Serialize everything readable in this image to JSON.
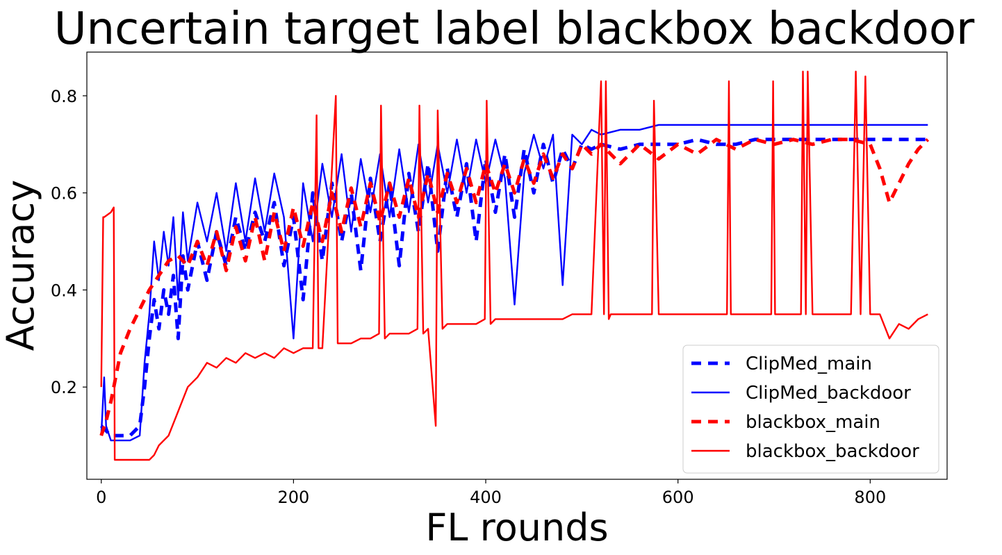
{
  "chart_data": {
    "type": "line",
    "title": "Uncertain target label blackbox backdoor",
    "xlabel": "FL rounds",
    "ylabel": "Accuracy",
    "xlim": [
      -15,
      880
    ],
    "ylim": [
      0.01,
      0.89
    ],
    "xticks": [
      0,
      200,
      400,
      600,
      800
    ],
    "yticks": [
      0.2,
      0.4,
      0.6,
      0.8
    ],
    "xtick_labels": [
      "0",
      "200",
      "400",
      "600",
      "800"
    ],
    "ytick_labels": [
      "0.2",
      "0.4",
      "0.6",
      "0.8"
    ],
    "grid": false,
    "legend_position": "lower-right",
    "series": [
      {
        "name": "ClipMed_main",
        "color": "#0000ff",
        "style": "dashed",
        "x": [
          0,
          5,
          10,
          20,
          30,
          40,
          45,
          50,
          55,
          60,
          65,
          70,
          75,
          80,
          85,
          90,
          100,
          110,
          120,
          130,
          140,
          150,
          160,
          170,
          180,
          190,
          200,
          210,
          220,
          230,
          240,
          250,
          260,
          270,
          280,
          290,
          300,
          310,
          320,
          330,
          340,
          350,
          360,
          370,
          380,
          390,
          400,
          410,
          420,
          430,
          440,
          450,
          460,
          470,
          480,
          490,
          500,
          510,
          520,
          540,
          560,
          580,
          600,
          620,
          640,
          660,
          680,
          700,
          720,
          740,
          760,
          780,
          800,
          820,
          840,
          860
        ],
        "y": [
          0.12,
          0.11,
          0.1,
          0.1,
          0.1,
          0.12,
          0.2,
          0.3,
          0.38,
          0.32,
          0.4,
          0.35,
          0.43,
          0.3,
          0.47,
          0.4,
          0.5,
          0.42,
          0.52,
          0.45,
          0.55,
          0.48,
          0.56,
          0.5,
          0.58,
          0.45,
          0.55,
          0.38,
          0.6,
          0.46,
          0.62,
          0.5,
          0.6,
          0.44,
          0.63,
          0.5,
          0.62,
          0.45,
          0.64,
          0.52,
          0.66,
          0.48,
          0.65,
          0.55,
          0.66,
          0.5,
          0.67,
          0.56,
          0.68,
          0.55,
          0.69,
          0.6,
          0.7,
          0.62,
          0.69,
          0.65,
          0.7,
          0.69,
          0.7,
          0.69,
          0.7,
          0.7,
          0.7,
          0.71,
          0.7,
          0.7,
          0.71,
          0.71,
          0.71,
          0.71,
          0.71,
          0.71,
          0.71,
          0.71,
          0.71,
          0.71
        ]
      },
      {
        "name": "ClipMed_backdoor",
        "color": "#0000ff",
        "style": "solid",
        "x": [
          0,
          3,
          5,
          10,
          20,
          30,
          40,
          45,
          50,
          55,
          60,
          65,
          70,
          75,
          80,
          85,
          90,
          100,
          110,
          120,
          130,
          140,
          150,
          160,
          170,
          180,
          190,
          200,
          210,
          220,
          230,
          240,
          250,
          260,
          270,
          280,
          290,
          300,
          310,
          320,
          330,
          340,
          350,
          360,
          370,
          380,
          390,
          400,
          410,
          420,
          430,
          440,
          450,
          460,
          470,
          480,
          490,
          500,
          510,
          520,
          540,
          560,
          580,
          600,
          620,
          640,
          660,
          680,
          700,
          720,
          740,
          760,
          780,
          800,
          820,
          840,
          860
        ],
        "y": [
          0.1,
          0.22,
          0.12,
          0.09,
          0.09,
          0.09,
          0.1,
          0.25,
          0.35,
          0.5,
          0.42,
          0.52,
          0.45,
          0.55,
          0.38,
          0.56,
          0.46,
          0.58,
          0.5,
          0.6,
          0.48,
          0.62,
          0.5,
          0.63,
          0.52,
          0.64,
          0.55,
          0.3,
          0.62,
          0.5,
          0.66,
          0.55,
          0.68,
          0.52,
          0.67,
          0.56,
          0.68,
          0.55,
          0.69,
          0.56,
          0.7,
          0.58,
          0.7,
          0.6,
          0.71,
          0.6,
          0.71,
          0.62,
          0.71,
          0.63,
          0.37,
          0.64,
          0.72,
          0.65,
          0.72,
          0.41,
          0.72,
          0.7,
          0.73,
          0.72,
          0.73,
          0.73,
          0.74,
          0.74,
          0.74,
          0.74,
          0.74,
          0.74,
          0.74,
          0.74,
          0.74,
          0.74,
          0.74,
          0.74,
          0.74,
          0.74,
          0.74
        ]
      },
      {
        "name": "blackbox_main",
        "color": "#ff0000",
        "style": "dashed",
        "x": [
          0,
          5,
          10,
          15,
          20,
          30,
          40,
          50,
          60,
          70,
          80,
          90,
          100,
          110,
          120,
          130,
          140,
          150,
          160,
          170,
          180,
          190,
          200,
          210,
          220,
          230,
          240,
          250,
          260,
          270,
          280,
          290,
          300,
          310,
          320,
          330,
          340,
          350,
          360,
          370,
          380,
          390,
          400,
          410,
          420,
          430,
          440,
          450,
          460,
          470,
          480,
          490,
          500,
          510,
          520,
          540,
          560,
          580,
          600,
          620,
          640,
          660,
          680,
          700,
          720,
          740,
          760,
          780,
          800,
          810,
          820,
          830,
          840,
          850,
          860
        ],
        "y": [
          0.1,
          0.13,
          0.17,
          0.22,
          0.27,
          0.32,
          0.36,
          0.4,
          0.43,
          0.46,
          0.47,
          0.45,
          0.5,
          0.45,
          0.52,
          0.44,
          0.53,
          0.46,
          0.55,
          0.46,
          0.56,
          0.48,
          0.57,
          0.49,
          0.58,
          0.5,
          0.6,
          0.52,
          0.61,
          0.53,
          0.62,
          0.54,
          0.62,
          0.55,
          0.63,
          0.55,
          0.64,
          0.56,
          0.64,
          0.58,
          0.65,
          0.58,
          0.66,
          0.6,
          0.66,
          0.6,
          0.67,
          0.62,
          0.68,
          0.63,
          0.68,
          0.65,
          0.7,
          0.68,
          0.7,
          0.66,
          0.7,
          0.67,
          0.7,
          0.68,
          0.71,
          0.69,
          0.71,
          0.7,
          0.71,
          0.7,
          0.71,
          0.71,
          0.7,
          0.65,
          0.58,
          0.62,
          0.66,
          0.69,
          0.71
        ]
      },
      {
        "name": "blackbox_backdoor",
        "color": "#ff0000",
        "style": "solid",
        "x": [
          0,
          2,
          3,
          10,
          13,
          14,
          20,
          30,
          40,
          50,
          55,
          60,
          70,
          80,
          90,
          100,
          110,
          120,
          130,
          140,
          150,
          160,
          170,
          180,
          190,
          200,
          210,
          220,
          224,
          226,
          230,
          244,
          246,
          250,
          260,
          270,
          280,
          289,
          291,
          295,
          300,
          310,
          320,
          329,
          331,
          335,
          340,
          348,
          350,
          355,
          360,
          370,
          380,
          390,
          399,
          401,
          405,
          410,
          420,
          430,
          440,
          450,
          460,
          470,
          480,
          490,
          500,
          510,
          520,
          523,
          525,
          528,
          530,
          540,
          550,
          560,
          570,
          573,
          575,
          580,
          600,
          620,
          640,
          651,
          653,
          655,
          660,
          680,
          697,
          699,
          701,
          720,
          728,
          730,
          733,
          735,
          740,
          750,
          760,
          780,
          785,
          790,
          795,
          800,
          810,
          820,
          830,
          840,
          850,
          860
        ],
        "y": [
          0.2,
          0.55,
          0.55,
          0.56,
          0.57,
          0.05,
          0.05,
          0.05,
          0.05,
          0.05,
          0.06,
          0.08,
          0.1,
          0.15,
          0.2,
          0.22,
          0.25,
          0.24,
          0.26,
          0.25,
          0.27,
          0.26,
          0.27,
          0.26,
          0.28,
          0.27,
          0.28,
          0.28,
          0.76,
          0.28,
          0.28,
          0.8,
          0.29,
          0.29,
          0.29,
          0.3,
          0.3,
          0.31,
          0.78,
          0.3,
          0.31,
          0.31,
          0.31,
          0.32,
          0.78,
          0.31,
          0.32,
          0.12,
          0.77,
          0.32,
          0.33,
          0.33,
          0.33,
          0.33,
          0.34,
          0.79,
          0.33,
          0.34,
          0.34,
          0.34,
          0.34,
          0.34,
          0.34,
          0.34,
          0.34,
          0.35,
          0.35,
          0.35,
          0.83,
          0.35,
          0.83,
          0.34,
          0.35,
          0.35,
          0.35,
          0.35,
          0.35,
          0.35,
          0.79,
          0.35,
          0.35,
          0.35,
          0.35,
          0.35,
          0.83,
          0.35,
          0.35,
          0.35,
          0.35,
          0.83,
          0.35,
          0.35,
          0.35,
          0.85,
          0.35,
          0.85,
          0.35,
          0.35,
          0.35,
          0.35,
          0.85,
          0.35,
          0.84,
          0.35,
          0.35,
          0.3,
          0.33,
          0.32,
          0.34,
          0.35
        ]
      }
    ]
  }
}
